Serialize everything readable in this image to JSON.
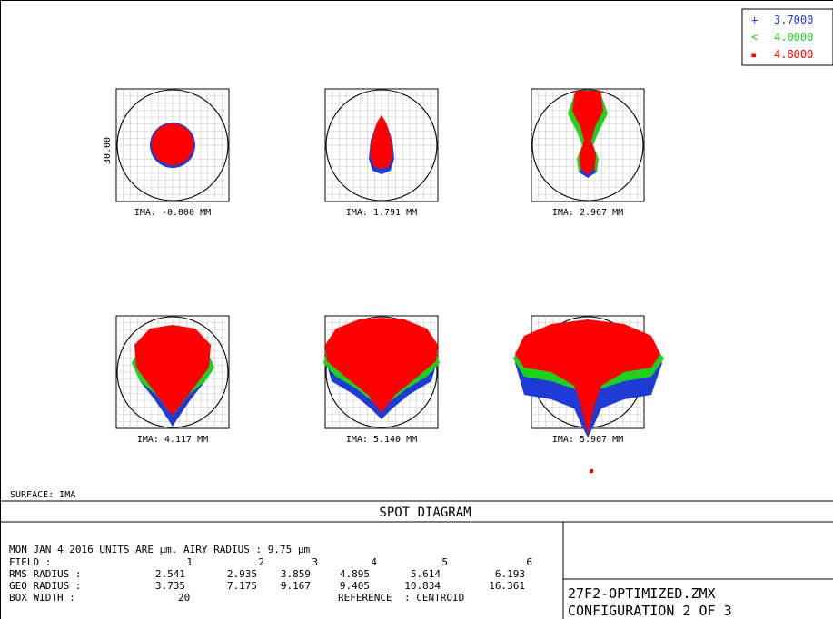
{
  "chart_data": {
    "type": "scatter",
    "title": "SPOT DIAGRAM",
    "scale_bar_label": "30.00",
    "legend": [
      {
        "label": "3.7000",
        "color": "#1f3bd6",
        "marker": "+"
      },
      {
        "label": "4.0000",
        "color": "#1fd01f",
        "marker": "<"
      },
      {
        "label": "4.8000",
        "color": "#ff0000",
        "marker": "▪"
      }
    ],
    "fields": [
      {
        "label": "IMA: -0.000 MM",
        "ima_mm": -0.0
      },
      {
        "label": "IMA: 1.791 MM",
        "ima_mm": 1.791
      },
      {
        "label": "IMA: 2.967 MM",
        "ima_mm": 2.967
      },
      {
        "label": "IMA: 4.117 MM",
        "ima_mm": 4.117
      },
      {
        "label": "IMA: 5.140 MM",
        "ima_mm": 5.14
      },
      {
        "label": "IMA: 5.907 MM",
        "ima_mm": 5.907
      }
    ],
    "surface_label": "SURFACE: IMA",
    "info": {
      "header": "MON JAN 4 2016  UNITS ARE µm.  AIRY RADIUS : 9.75 µm",
      "field_label": "FIELD      :",
      "field_numbers": [
        "1",
        "2",
        "3",
        "4",
        "5",
        "6"
      ],
      "rms_label": "RMS RADIUS :",
      "rms_values": [
        "2.541",
        "2.935",
        "3.859",
        "4.895",
        "5.614",
        "6.193"
      ],
      "geo_label": "GEO RADIUS :",
      "geo_values": [
        "3.735",
        "7.175",
        "9.167",
        "9.405",
        "10.834",
        "16.361"
      ],
      "box_width_label": "BOX WIDTH  :",
      "box_width_value": "20",
      "reference_label": "REFERENCE",
      "reference_value": ": CENTROID"
    },
    "file_name": "27F2-OPTIMIZED.ZMX",
    "configuration": "CONFIGURATION 2 OF 3"
  }
}
